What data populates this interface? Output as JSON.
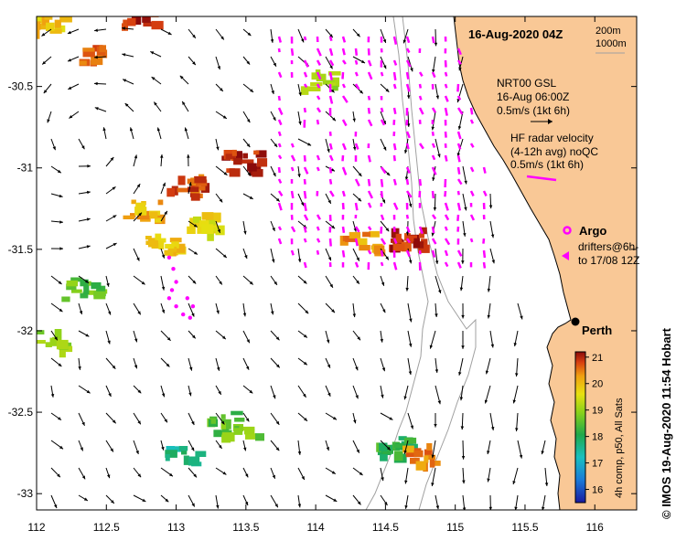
{
  "title": "16-Aug-2020 04Z",
  "depth_legend": [
    "200m",
    "1000m"
  ],
  "gsl_legend": {
    "line1": "NRT00 GSL",
    "line2": "16-Aug 06:00Z",
    "line3": "0.5m/s (1kt 6h)"
  },
  "hf_legend": {
    "line1": "HF radar velocity",
    "line2": "(4-12h avg) noQC",
    "line3": "0.5m/s (1kt 6h)"
  },
  "argo_label": "Argo",
  "drifters_label": {
    "line1": "drifters@6h-",
    "line2": "to 17/08 12Z"
  },
  "city_label": "Perth",
  "x_ticks": [
    "112",
    "112.5",
    "113",
    "113.5",
    "114",
    "114.5",
    "115",
    "115.5",
    "116"
  ],
  "y_ticks": [
    "-30.5",
    "-31",
    "-31.5",
    "-32",
    "-32.5",
    "-33"
  ],
  "colorbar": {
    "ticks": [
      "21",
      "20",
      "19",
      "18",
      "17",
      "16"
    ],
    "label": "4h comp, p50, All Sats",
    "min": 15.5,
    "max": 21.2
  },
  "credit": "© IMOS 19-Aug-2020 11:54 Hobart",
  "colors": {
    "land": "#f9c896",
    "magenta": "#ff00ff",
    "coast": "#000000",
    "isobath": "#a0a0a0"
  },
  "chart_data": {
    "type": "map",
    "x_range": [
      112,
      116.3
    ],
    "y_range": [
      -30.07,
      -33.1
    ],
    "city": {
      "name": "Perth",
      "lon": 115.86,
      "lat": -31.95
    },
    "sst_patches": [
      {
        "lon": 112.35,
        "lat": -30.3,
        "value": 20.5
      },
      {
        "lon": 112.72,
        "lat": -30.05,
        "value": 21.0
      },
      {
        "lon": 112.06,
        "lat": -30.1,
        "value": 19.8
      },
      {
        "lon": 113.45,
        "lat": -30.95,
        "value": 21.0
      },
      {
        "lon": 113.05,
        "lat": -31.1,
        "value": 20.7
      },
      {
        "lon": 112.75,
        "lat": -31.25,
        "value": 20.0
      },
      {
        "lon": 112.9,
        "lat": -31.45,
        "value": 19.8
      },
      {
        "lon": 113.2,
        "lat": -31.33,
        "value": 19.5
      },
      {
        "lon": 112.3,
        "lat": -31.73,
        "value": 18.3
      },
      {
        "lon": 112.1,
        "lat": -32.05,
        "value": 18.6
      },
      {
        "lon": 113.35,
        "lat": -32.55,
        "value": 18.2
      },
      {
        "lon": 113.05,
        "lat": -32.75,
        "value": 17.5
      },
      {
        "lon": 113.45,
        "lat": -32.6,
        "value": 18.5
      },
      {
        "lon": 114.65,
        "lat": -31.42,
        "value": 21.0
      },
      {
        "lon": 114.3,
        "lat": -31.45,
        "value": 20.2
      },
      {
        "lon": 114.55,
        "lat": -32.7,
        "value": 18.0
      },
      {
        "lon": 114.75,
        "lat": -32.75,
        "value": 20.3
      },
      {
        "lon": 114.0,
        "lat": -30.45,
        "value": 18.8
      }
    ],
    "drifter_track": [
      [
        112.95,
        -31.55
      ],
      [
        112.98,
        -31.62
      ],
      [
        113.0,
        -31.7
      ],
      [
        112.97,
        -31.75
      ],
      [
        112.95,
        -31.8
      ],
      [
        113.0,
        -31.85
      ],
      [
        113.05,
        -31.9
      ],
      [
        113.1,
        -31.92
      ],
      [
        113.12,
        -31.85
      ],
      [
        113.08,
        -31.8
      ]
    ]
  }
}
